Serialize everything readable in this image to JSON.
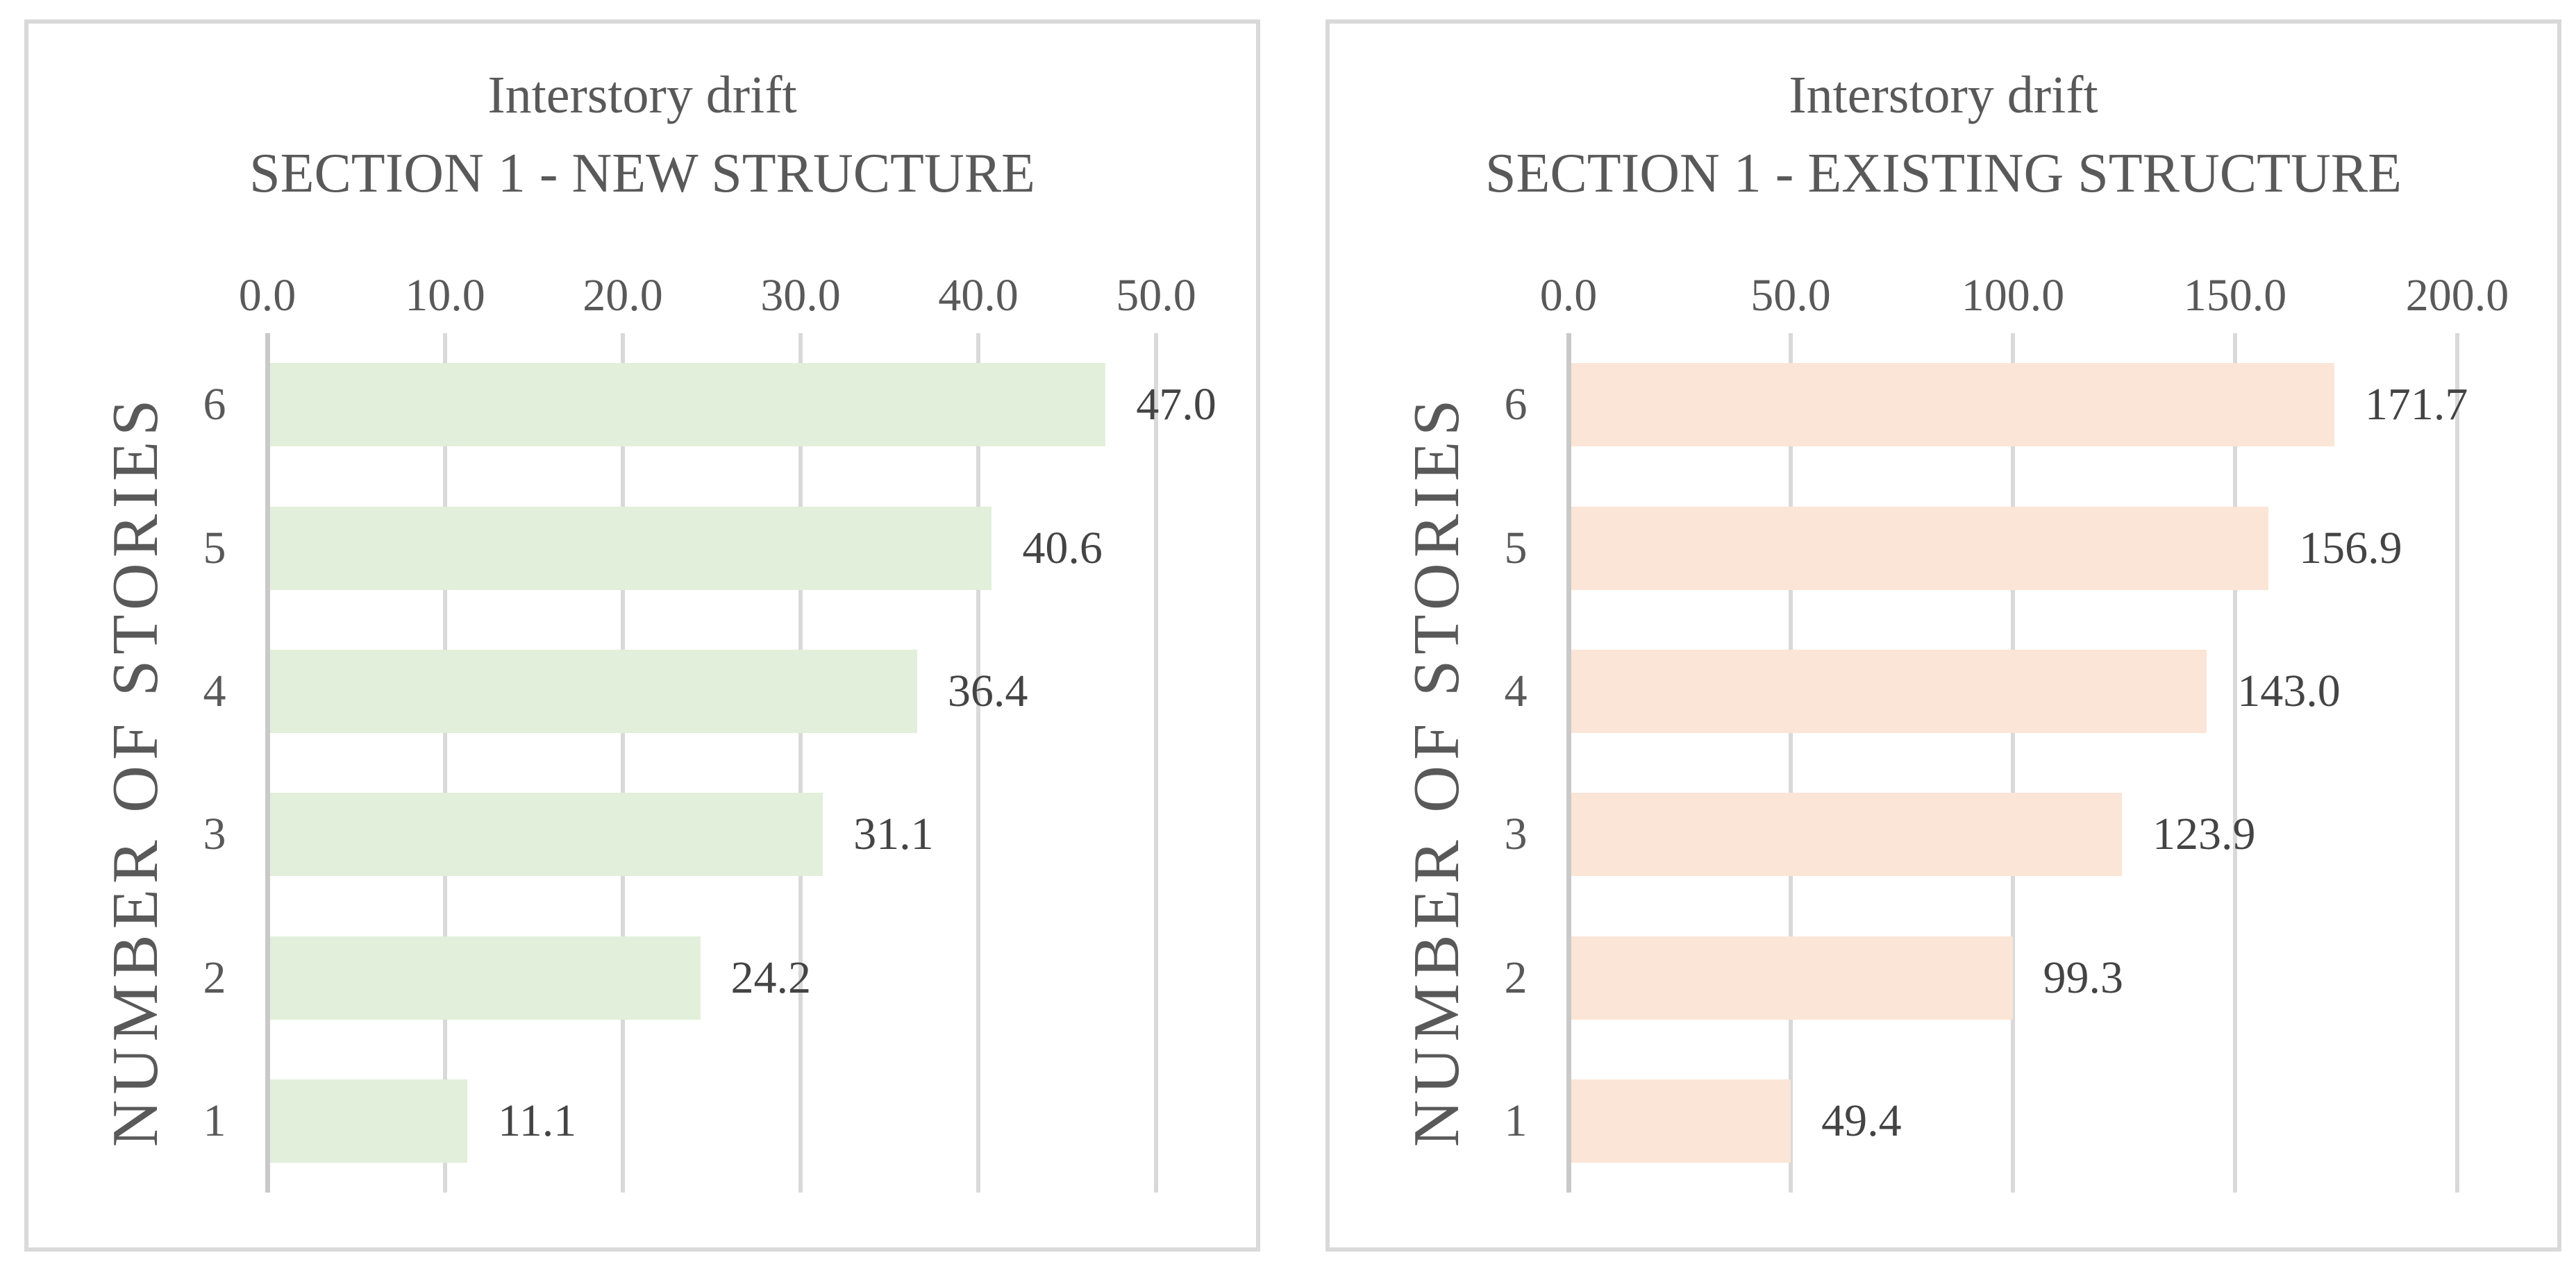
{
  "theme": {
    "page_bg": "#ffffff",
    "panel_bg": "#ffffff",
    "panel_border": "#d9d9d9",
    "grid_color": "#d9d9d9",
    "axis_color": "#c9c9c9",
    "text_color": "#595959",
    "data_label_color": "#444444"
  },
  "chart_data": [
    {
      "type": "bar",
      "orientation": "horizontal",
      "title": "Interstory drift",
      "subtitle": "SECTION 1 - NEW STRUCTURE",
      "ylabel": "NUMBER OF STORIES",
      "categories": [
        "6",
        "5",
        "4",
        "3",
        "2",
        "1"
      ],
      "values": [
        47.0,
        40.6,
        36.4,
        31.1,
        24.2,
        11.1
      ],
      "data_labels": [
        "47.0",
        "40.6",
        "36.4",
        "31.1",
        "24.2",
        "11.1"
      ],
      "xtick_values": [
        0,
        10,
        20,
        30,
        40,
        50
      ],
      "xtick_labels": [
        "0.0",
        "10.0",
        "20.0",
        "30.0",
        "40.0",
        "50.0"
      ],
      "xlim": [
        0,
        50
      ],
      "grid": true,
      "legend": "none",
      "bar_color": "#e2efda"
    },
    {
      "type": "bar",
      "orientation": "horizontal",
      "title": "Interstory drift",
      "subtitle": "SECTION 1 - EXISTING STRUCTURE",
      "ylabel": "NUMBER OF STORIES",
      "categories": [
        "6",
        "5",
        "4",
        "3",
        "2",
        "1"
      ],
      "values": [
        171.7,
        156.9,
        143.0,
        123.9,
        99.3,
        49.4
      ],
      "data_labels": [
        "171.7",
        "156.9",
        "143.0",
        "123.9",
        "99.3",
        "49.4"
      ],
      "xtick_values": [
        0,
        50,
        100,
        150,
        200
      ],
      "xtick_labels": [
        "0.0",
        "50.0",
        "100.0",
        "150.0",
        "200.0"
      ],
      "xlim": [
        0,
        200
      ],
      "grid": true,
      "legend": "none",
      "bar_color": "#fbe5d6"
    }
  ]
}
